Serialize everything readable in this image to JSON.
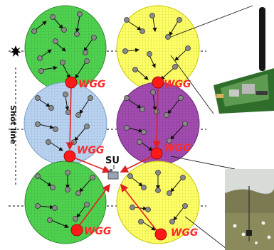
{
  "labels": {
    "gateway": "WGG",
    "sink": "SU",
    "side": "Shot line"
  },
  "colors": {
    "green_cell": "#4fd24f",
    "yellow_cell": "#ffff66",
    "blue_cell": "#b9d3f2",
    "purple_cell": "#a24bb0",
    "gateway_node": "#ff1a1a",
    "sensor_node": "#8a8a8a",
    "link_red": "#e02020"
  },
  "icons": {
    "shot_source": "starburst-icon",
    "sink_unit": "base-station-icon",
    "hardware_photo": "wireless-sensor-board-photo",
    "field_photo": "field-deployment-photo"
  }
}
